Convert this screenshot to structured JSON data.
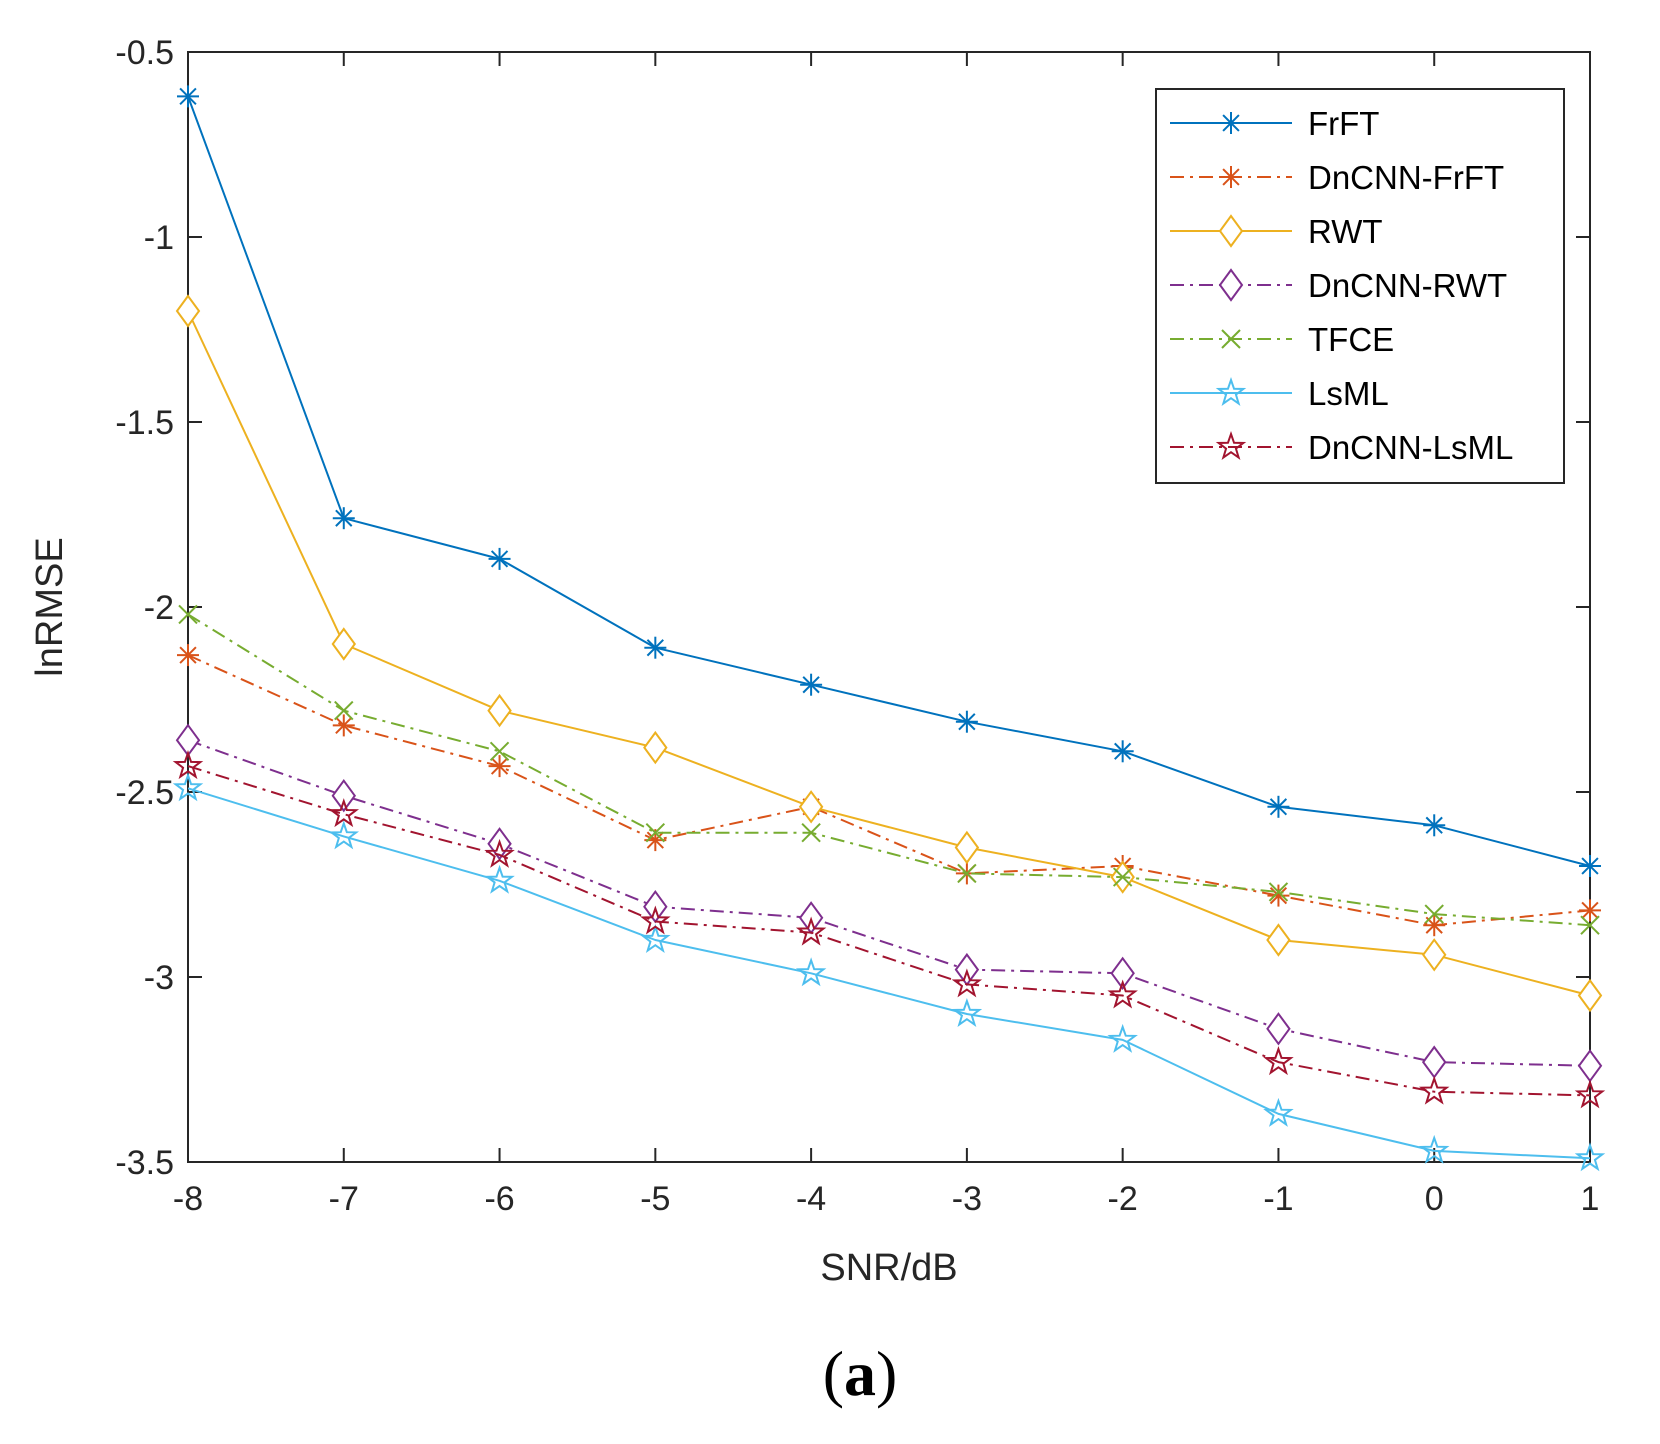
{
  "chart_data": {
    "type": "line",
    "title": "",
    "xlabel": "SNR/dB",
    "ylabel": "lnRMSE",
    "x": [
      -8,
      -7,
      -6,
      -5,
      -4,
      -3,
      -2,
      -1,
      0,
      1
    ],
    "xlim": [
      -8,
      1
    ],
    "ylim": [
      -3.5,
      -0.5
    ],
    "xticks": [
      "-8",
      "-7",
      "-6",
      "-5",
      "-4",
      "-3",
      "-2",
      "-1",
      "0",
      "1"
    ],
    "yticks": [
      "-0.5",
      "-1",
      "-1.5",
      "-2",
      "-2.5",
      "-3",
      "-3.5"
    ],
    "ytick_values": [
      -0.5,
      -1,
      -1.5,
      -2,
      -2.5,
      -3,
      -3.5
    ],
    "grid": false,
    "legend_position": "top-right",
    "series": [
      {
        "name": "FrFT",
        "values": [
          -0.62,
          -1.76,
          -1.87,
          -2.11,
          -2.21,
          -2.31,
          -2.39,
          -2.54,
          -2.59,
          -2.7
        ],
        "color": "#0072BD",
        "marker": "asterisk",
        "dash": "solid"
      },
      {
        "name": "DnCNN-FrFT",
        "values": [
          -2.13,
          -2.32,
          -2.43,
          -2.63,
          -2.54,
          -2.72,
          -2.7,
          -2.78,
          -2.86,
          -2.82
        ],
        "color": "#D95319",
        "marker": "asterisk",
        "dash": "dashdot"
      },
      {
        "name": "RWT",
        "values": [
          -1.2,
          -2.1,
          -2.28,
          -2.38,
          -2.54,
          -2.65,
          -2.73,
          -2.9,
          -2.94,
          -3.05
        ],
        "color": "#EDB120",
        "marker": "diamond",
        "dash": "solid"
      },
      {
        "name": "DnCNN-RWT",
        "values": [
          -2.36,
          -2.51,
          -2.64,
          -2.81,
          -2.84,
          -2.98,
          -2.99,
          -3.14,
          -3.23,
          -3.24
        ],
        "color": "#7E2F8E",
        "marker": "diamond",
        "dash": "dashdot"
      },
      {
        "name": "TFCE",
        "values": [
          -2.02,
          -2.28,
          -2.39,
          -2.61,
          -2.61,
          -2.72,
          -2.73,
          -2.77,
          -2.83,
          -2.86
        ],
        "color": "#77AC30",
        "marker": "x",
        "dash": "dashdot"
      },
      {
        "name": "LsML",
        "values": [
          -2.49,
          -2.62,
          -2.74,
          -2.9,
          -2.99,
          -3.1,
          -3.17,
          -3.37,
          -3.47,
          -3.49
        ],
        "color": "#4DBEEE",
        "marker": "pentagram",
        "dash": "solid"
      },
      {
        "name": "DnCNN-LsML",
        "values": [
          -2.43,
          -2.56,
          -2.67,
          -2.85,
          -2.88,
          -3.02,
          -3.05,
          -3.23,
          -3.31,
          -3.32
        ],
        "color": "#A2142F",
        "marker": "pentagram",
        "dash": "dashdot"
      }
    ]
  },
  "caption": {
    "open": "(",
    "letter": "a",
    "close": ")"
  }
}
